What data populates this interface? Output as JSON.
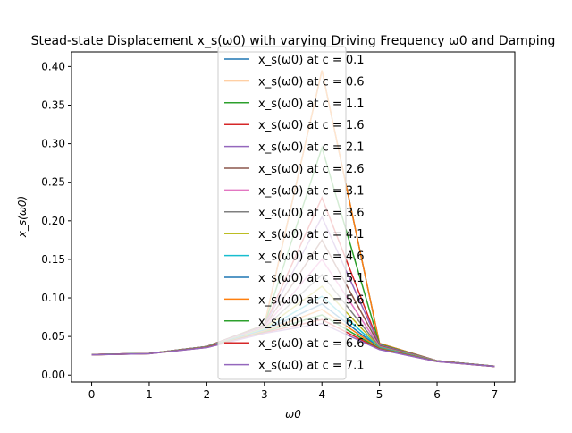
{
  "chart_data": {
    "type": "line",
    "title": "Stead-state Displacement x_s(ω0) with varying Driving Frequency ω0 and Damping",
    "xlabel": "ω0",
    "ylabel": "x_s(ω0)",
    "x": [
      0,
      1,
      2,
      3,
      4,
      5,
      6,
      7
    ],
    "xlim": [
      -0.35,
      7.35
    ],
    "ylim": [
      -0.009,
      0.419
    ],
    "xticks": [
      0,
      1,
      2,
      3,
      4,
      5,
      6,
      7
    ],
    "yticks": [
      0.0,
      0.05,
      0.1,
      0.15,
      0.2,
      0.25,
      0.3,
      0.35,
      0.4
    ],
    "grid": false,
    "legend_position": "upper center",
    "series": [
      {
        "name": "x_s(ω0) at c = 0.1",
        "color": "#1f77b4",
        "values": [
          0.0265,
          0.028,
          0.037,
          0.065,
          0.395,
          0.041,
          0.0185,
          0.0115
        ]
      },
      {
        "name": "x_s(ω0) at c = 0.6",
        "color": "#ff7f0e",
        "values": [
          0.0265,
          0.028,
          0.037,
          0.0648,
          0.395,
          0.041,
          0.0185,
          0.0115
        ]
      },
      {
        "name": "x_s(ω0) at c = 1.1",
        "color": "#2ca02c",
        "values": [
          0.0265,
          0.028,
          0.037,
          0.0645,
          0.295,
          0.04,
          0.0185,
          0.0115
        ]
      },
      {
        "name": "x_s(ω0) at c = 1.6",
        "color": "#d62728",
        "values": [
          0.0265,
          0.028,
          0.037,
          0.064,
          0.23,
          0.039,
          0.0184,
          0.0115
        ]
      },
      {
        "name": "x_s(ω0) at c = 2.1",
        "color": "#9467bd",
        "values": [
          0.0265,
          0.028,
          0.037,
          0.0635,
          0.205,
          0.039,
          0.0184,
          0.0115
        ]
      },
      {
        "name": "x_s(ω0) at c = 2.6",
        "color": "#8c564b",
        "values": [
          0.0265,
          0.028,
          0.037,
          0.0628,
          0.175,
          0.038,
          0.0183,
          0.0115
        ]
      },
      {
        "name": "x_s(ω0) at c = 3.1",
        "color": "#e377c2",
        "values": [
          0.0265,
          0.028,
          0.0368,
          0.062,
          0.15,
          0.037,
          0.0183,
          0.0114
        ]
      },
      {
        "name": "x_s(ω0) at c = 3.6",
        "color": "#7f7f7f",
        "values": [
          0.0265,
          0.028,
          0.0367,
          0.061,
          0.13,
          0.0365,
          0.0182,
          0.0114
        ]
      },
      {
        "name": "x_s(ω0) at c = 4.1",
        "color": "#bcbd22",
        "values": [
          0.0264,
          0.028,
          0.0366,
          0.06,
          0.115,
          0.036,
          0.0181,
          0.0114
        ]
      },
      {
        "name": "x_s(ω0) at c = 4.6",
        "color": "#17becf",
        "values": [
          0.0264,
          0.0279,
          0.0365,
          0.059,
          0.102,
          0.0355,
          0.018,
          0.0113
        ]
      },
      {
        "name": "x_s(ω0) at c = 5.1",
        "color": "#1f77b4",
        "values": [
          0.0264,
          0.0279,
          0.0364,
          0.058,
          0.092,
          0.035,
          0.0179,
          0.0113
        ]
      },
      {
        "name": "x_s(ω0) at c = 5.6",
        "color": "#ff7f0e",
        "values": [
          0.0263,
          0.0278,
          0.0362,
          0.057,
          0.085,
          0.0345,
          0.0178,
          0.0112
        ]
      },
      {
        "name": "x_s(ω0) at c = 6.1",
        "color": "#2ca02c",
        "values": [
          0.0263,
          0.0278,
          0.036,
          0.056,
          0.078,
          0.034,
          0.0177,
          0.0112
        ]
      },
      {
        "name": "x_s(ω0) at c = 6.6",
        "color": "#d62728",
        "values": [
          0.0262,
          0.0277,
          0.0358,
          0.055,
          0.072,
          0.0335,
          0.0176,
          0.0111
        ]
      },
      {
        "name": "x_s(ω0) at c = 7.1",
        "color": "#9467bd",
        "values": [
          0.0262,
          0.0277,
          0.0356,
          0.054,
          0.067,
          0.033,
          0.0175,
          0.0111
        ]
      }
    ]
  }
}
